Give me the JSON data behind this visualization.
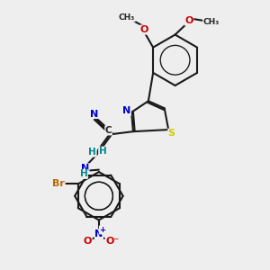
{
  "bg_color": "#eeeeee",
  "bond_color": "#1a1a1a",
  "bond_width": 1.5,
  "atom_colors": {
    "N": "#0000cc",
    "O": "#cc0000",
    "S": "#cccc00",
    "Br": "#bb6600",
    "C_dark": "#222222",
    "H_teal": "#008888"
  },
  "font_size": 8.0,
  "figsize": [
    3.0,
    3.0
  ],
  "dpi": 100,
  "xlim": [
    0,
    10
  ],
  "ylim": [
    0,
    10
  ]
}
